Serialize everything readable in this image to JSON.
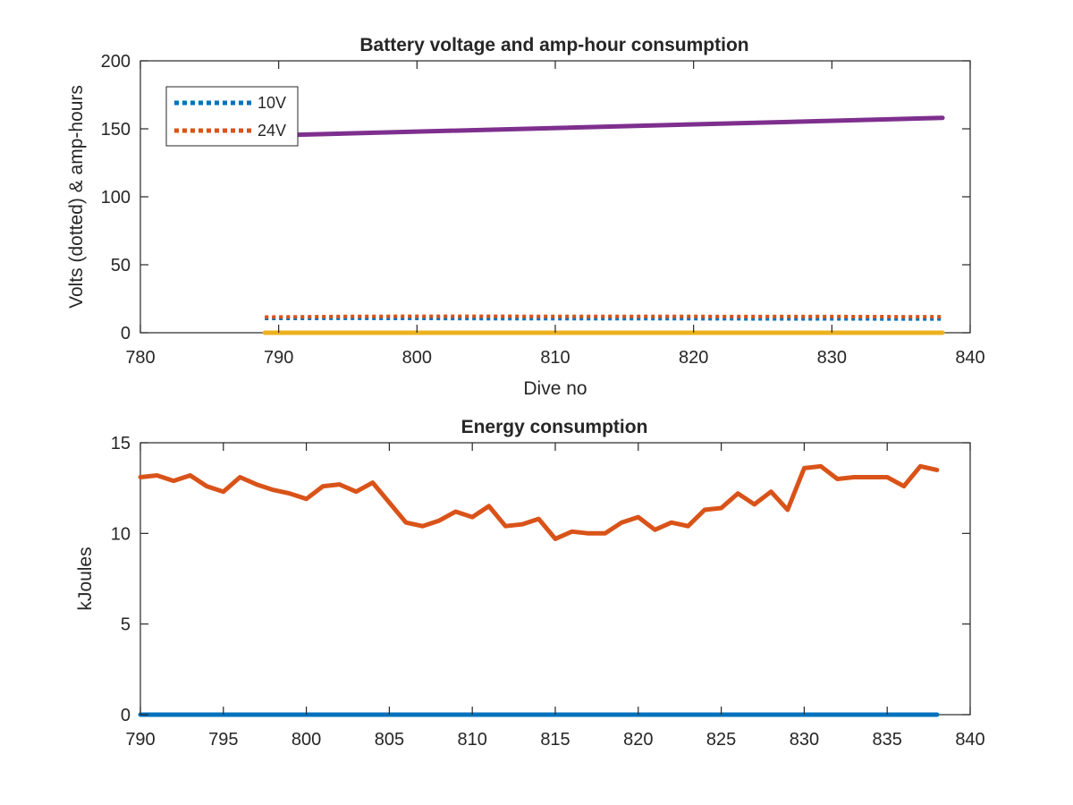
{
  "chart_data": [
    {
      "type": "line",
      "title": "Battery voltage and amp-hour consumption",
      "xlabel": "Dive no",
      "ylabel": "Volts (dotted) & amp-hours",
      "xlim": [
        780,
        840
      ],
      "ylim": [
        0,
        200
      ],
      "xticks": [
        "780",
        "790",
        "800",
        "810",
        "820",
        "830",
        "840"
      ],
      "yticks": [
        "0",
        "50",
        "100",
        "150",
        "200"
      ],
      "grid": false,
      "legend_position": "top-left",
      "series": [
        {
          "name": "10V",
          "style": "dotted",
          "color": "#0072BD",
          "x": [
            789,
            790,
            795,
            800,
            805,
            810,
            815,
            820,
            825,
            830,
            835,
            838
          ],
          "y": [
            10.5,
            10.5,
            10.6,
            10.5,
            10.4,
            10.4,
            10.3,
            10.3,
            10.2,
            10.2,
            10.1,
            10.1
          ]
        },
        {
          "name": "24V",
          "style": "dotted",
          "color": "#D95319",
          "x": [
            789,
            790,
            795,
            800,
            805,
            810,
            815,
            820,
            825,
            830,
            835,
            838
          ],
          "y": [
            11.5,
            11.6,
            12.0,
            12.1,
            12.1,
            12.0,
            12.0,
            12.0,
            11.9,
            11.9,
            11.8,
            11.8
          ]
        },
        {
          "style": "solid",
          "color": "#7E2F8E",
          "x": [
            789,
            838
          ],
          "y": [
            145,
            158
          ]
        },
        {
          "style": "solid",
          "color": "#EDB120",
          "x": [
            789,
            838
          ],
          "y": [
            0,
            0
          ]
        }
      ]
    },
    {
      "type": "line",
      "title": "Energy consumption",
      "xlabel": "",
      "ylabel": "kJoules",
      "xlim": [
        790,
        840
      ],
      "ylim": [
        0,
        15
      ],
      "xticks": [
        "790",
        "795",
        "800",
        "805",
        "810",
        "815",
        "820",
        "825",
        "830",
        "835",
        "840"
      ],
      "yticks": [
        "0",
        "5",
        "10",
        "15"
      ],
      "grid": false,
      "series": [
        {
          "style": "solid",
          "color": "#0072BD",
          "x": [
            790,
            838
          ],
          "y": [
            0,
            0
          ]
        },
        {
          "style": "solid",
          "color": "#D95319",
          "x": [
            790,
            791,
            792,
            793,
            794,
            795,
            796,
            797,
            798,
            799,
            800,
            801,
            802,
            803,
            804,
            805,
            806,
            807,
            808,
            809,
            810,
            811,
            812,
            813,
            814,
            815,
            816,
            817,
            818,
            819,
            820,
            821,
            822,
            823,
            824,
            825,
            826,
            827,
            828,
            829,
            830,
            831,
            832,
            833,
            834,
            835,
            836,
            837,
            838
          ],
          "y": [
            13.1,
            13.2,
            12.9,
            13.2,
            12.6,
            12.3,
            13.1,
            12.7,
            12.4,
            12.2,
            11.9,
            12.6,
            12.7,
            12.3,
            12.8,
            11.7,
            10.6,
            10.4,
            10.7,
            11.2,
            10.9,
            11.5,
            10.4,
            10.5,
            10.8,
            9.7,
            10.1,
            10.0,
            10.0,
            10.6,
            10.9,
            10.2,
            10.6,
            10.4,
            11.3,
            11.4,
            12.2,
            11.6,
            12.3,
            11.3,
            13.6,
            13.7,
            13.0,
            13.1,
            13.1,
            13.1,
            12.6,
            13.7,
            13.5
          ]
        }
      ]
    }
  ]
}
